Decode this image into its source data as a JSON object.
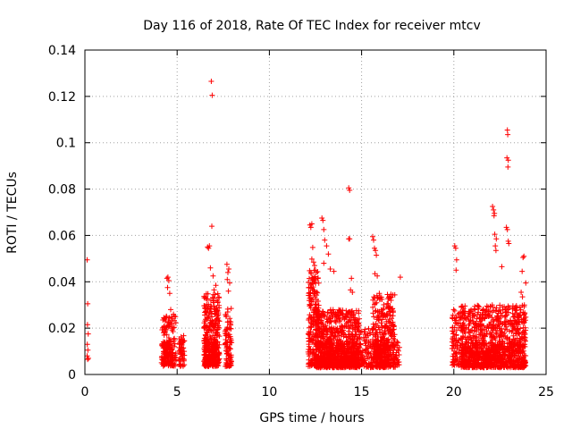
{
  "chart_data": {
    "type": "scatter",
    "title": "Day 116 of 2018, Rate Of TEC Index for receiver mtcv",
    "xlabel": "GPS time / hours",
    "ylabel": "ROTI / TECUs",
    "xlim": [
      0,
      25
    ],
    "ylim": [
      0,
      0.14
    ],
    "xticks": [
      0,
      5,
      10,
      15,
      20,
      25
    ],
    "yticks": [
      0,
      0.02,
      0.04,
      0.06,
      0.08,
      0.1,
      0.12,
      0.14
    ],
    "xtick_labels": [
      "0",
      "5",
      "10",
      "15",
      "20",
      "25"
    ],
    "ytick_labels": [
      "0",
      "0.02",
      "0.04",
      "0.06",
      "0.08",
      "0.1",
      "0.12",
      "0.14"
    ],
    "grid": true,
    "marker": "+",
    "colors": {
      "series": "#ff0000",
      "grid": "#a0a0a0",
      "axis": "#000000"
    },
    "series": [
      {
        "name": "ROTI",
        "points": [
          [
            0.12,
            0.0495
          ],
          [
            0.15,
            0.0305
          ],
          [
            0.14,
            0.0215
          ],
          [
            0.18,
            0.0175
          ],
          [
            0.13,
            0.013
          ],
          [
            0.16,
            0.0105
          ],
          [
            0.12,
            0.008
          ],
          [
            0.19,
            0.007
          ],
          [
            0.15,
            0.0065
          ],
          [
            4.3,
            0.0205
          ],
          [
            4.35,
            0.0195
          ],
          [
            4.45,
            0.0415
          ],
          [
            4.5,
            0.042
          ],
          [
            4.55,
            0.0405
          ],
          [
            4.48,
            0.0375
          ],
          [
            4.6,
            0.035
          ],
          [
            4.65,
            0.028
          ],
          [
            4.7,
            0.025
          ],
          [
            4.75,
            0.024
          ],
          [
            4.8,
            0.026
          ],
          [
            4.62,
            0.0225
          ],
          [
            4.72,
            0.0218
          ],
          [
            6.85,
            0.1265
          ],
          [
            6.9,
            0.1205
          ],
          [
            6.88,
            0.064
          ],
          [
            6.65,
            0.055
          ],
          [
            6.7,
            0.0545
          ],
          [
            6.75,
            0.0555
          ],
          [
            6.8,
            0.046
          ],
          [
            6.95,
            0.0425
          ],
          [
            7.05,
            0.0345
          ],
          [
            7.1,
            0.0385
          ],
          [
            7.0,
            0.0365
          ],
          [
            7.7,
            0.0475
          ],
          [
            7.75,
            0.044
          ],
          [
            7.8,
            0.0455
          ],
          [
            7.72,
            0.041
          ],
          [
            7.85,
            0.0395
          ],
          [
            7.78,
            0.036
          ],
          [
            12.2,
            0.0645
          ],
          [
            12.3,
            0.065
          ],
          [
            12.25,
            0.0635
          ],
          [
            12.35,
            0.0548
          ],
          [
            12.3,
            0.0498
          ],
          [
            12.4,
            0.0485
          ],
          [
            12.45,
            0.047
          ],
          [
            12.5,
            0.045
          ],
          [
            12.55,
            0.044
          ],
          [
            12.85,
            0.0675
          ],
          [
            12.9,
            0.0665
          ],
          [
            12.95,
            0.0625
          ],
          [
            13.0,
            0.058
          ],
          [
            13.1,
            0.0555
          ],
          [
            13.2,
            0.052
          ],
          [
            12.95,
            0.048
          ],
          [
            13.3,
            0.0455
          ],
          [
            13.5,
            0.0445
          ],
          [
            14.3,
            0.0805
          ],
          [
            14.35,
            0.0795
          ],
          [
            14.3,
            0.0585
          ],
          [
            14.35,
            0.0585
          ],
          [
            14.4,
            0.0365
          ],
          [
            14.5,
            0.0355
          ],
          [
            14.45,
            0.0415
          ],
          [
            15.6,
            0.0595
          ],
          [
            15.65,
            0.058
          ],
          [
            15.7,
            0.0545
          ],
          [
            15.75,
            0.0535
          ],
          [
            15.8,
            0.0515
          ],
          [
            15.72,
            0.0435
          ],
          [
            15.85,
            0.0425
          ],
          [
            16.4,
            0.0345
          ],
          [
            16.5,
            0.0335
          ],
          [
            16.6,
            0.032
          ],
          [
            17.1,
            0.042
          ],
          [
            20.05,
            0.0555
          ],
          [
            20.1,
            0.0545
          ],
          [
            20.15,
            0.0495
          ],
          [
            20.12,
            0.045
          ],
          [
            22.1,
            0.0725
          ],
          [
            22.15,
            0.071
          ],
          [
            22.2,
            0.0695
          ],
          [
            22.18,
            0.0685
          ],
          [
            22.22,
            0.0605
          ],
          [
            22.3,
            0.0585
          ],
          [
            22.25,
            0.0555
          ],
          [
            22.28,
            0.0535
          ],
          [
            22.6,
            0.0465
          ],
          [
            22.9,
            0.1055
          ],
          [
            22.92,
            0.1035
          ],
          [
            22.88,
            0.0935
          ],
          [
            22.95,
            0.0925
          ],
          [
            22.93,
            0.0895
          ],
          [
            22.85,
            0.0635
          ],
          [
            22.9,
            0.0625
          ],
          [
            22.95,
            0.0575
          ],
          [
            22.98,
            0.0565
          ],
          [
            23.75,
            0.0505
          ],
          [
            23.8,
            0.051
          ],
          [
            23.7,
            0.0445
          ],
          [
            23.9,
            0.0395
          ],
          [
            23.65,
            0.0355
          ],
          [
            23.72,
            0.0335
          ]
        ],
        "dense_clusters": [
          {
            "x_range": [
              4.15,
              4.95
            ],
            "y_range": [
              0.0035,
              0.0255
            ],
            "count": 120
          },
          {
            "x_range": [
              4.25,
              4.75
            ],
            "y_range": [
              0.0035,
              0.0145
            ],
            "count": 60
          },
          {
            "x_range": [
              5.1,
              5.4
            ],
            "y_range": [
              0.0035,
              0.0175
            ],
            "count": 55
          },
          {
            "x_range": [
              6.45,
              7.3
            ],
            "y_range": [
              0.0035,
              0.035
            ],
            "count": 260
          },
          {
            "x_range": [
              6.5,
              7.2
            ],
            "y_range": [
              0.0035,
              0.015
            ],
            "count": 120
          },
          {
            "x_range": [
              7.6,
              7.95
            ],
            "y_range": [
              0.0035,
              0.029
            ],
            "count": 90
          },
          {
            "x_range": [
              12.1,
              12.7
            ],
            "y_range": [
              0.0035,
              0.045
            ],
            "count": 200
          },
          {
            "x_range": [
              12.5,
              14.9
            ],
            "y_range": [
              0.003,
              0.028
            ],
            "count": 650
          },
          {
            "x_range": [
              12.5,
              14.9
            ],
            "y_range": [
              0.003,
              0.014
            ],
            "count": 300
          },
          {
            "x_range": [
              14.9,
              15.6
            ],
            "y_range": [
              0.003,
              0.02
            ],
            "count": 90
          },
          {
            "x_range": [
              15.6,
              16.8
            ],
            "y_range": [
              0.003,
              0.035
            ],
            "count": 320
          },
          {
            "x_range": [
              15.6,
              16.5
            ],
            "y_range": [
              0.003,
              0.015
            ],
            "count": 130
          },
          {
            "x_range": [
              16.8,
              17.05
            ],
            "y_range": [
              0.003,
              0.0145
            ],
            "count": 25
          },
          {
            "x_range": [
              19.9,
              20.4
            ],
            "y_range": [
              0.004,
              0.028
            ],
            "count": 90
          },
          {
            "x_range": [
              20.4,
              23.9
            ],
            "y_range": [
              0.003,
              0.03
            ],
            "count": 800
          },
          {
            "x_range": [
              20.4,
              23.9
            ],
            "y_range": [
              0.003,
              0.014
            ],
            "count": 350
          }
        ]
      }
    ]
  }
}
